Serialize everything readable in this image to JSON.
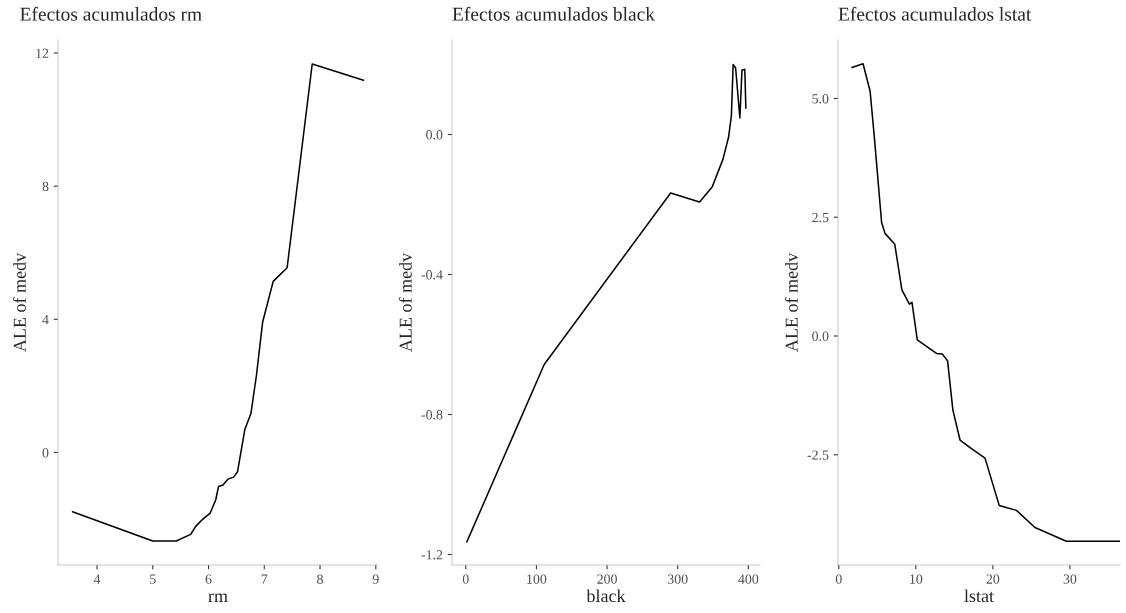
{
  "chart_data": [
    {
      "type": "line",
      "title": "Efectos acumulados rm",
      "xlabel": "rm",
      "ylabel": "ALE of medv",
      "xlim": [
        3.3,
        9.04
      ],
      "ylim": [
        -3.38,
        12.39
      ],
      "xticks": [
        4,
        5,
        6,
        7,
        8,
        9
      ],
      "yticks": [
        0,
        4,
        8,
        12
      ],
      "grid": false,
      "legend": false,
      "series": [
        {
          "color": "#000000",
          "x": [
            3.56,
            5.0,
            5.42,
            5.68,
            5.77,
            5.9,
            6.03,
            6.13,
            6.18,
            6.26,
            6.35,
            6.45,
            6.52,
            6.65,
            6.76,
            6.86,
            6.97,
            7.16,
            7.41,
            7.86,
            8.78
          ],
          "values": [
            -1.78,
            -2.66,
            -2.66,
            -2.46,
            -2.22,
            -2.0,
            -1.82,
            -1.42,
            -1.02,
            -0.98,
            -0.8,
            -0.74,
            -0.58,
            0.68,
            1.17,
            2.32,
            3.91,
            5.14,
            5.55,
            11.67,
            11.18
          ]
        }
      ]
    },
    {
      "type": "line",
      "title": "Efectos acumulados black",
      "xlabel": "black",
      "ylabel": "ALE of medv",
      "xlim": [
        -19.5,
        416.5
      ],
      "ylim": [
        -1.23,
        0.27
      ],
      "xticks": [
        0,
        100,
        200,
        300,
        400
      ],
      "yticks": [
        {
          "value": -1.2,
          "label": "-1.2"
        },
        {
          "value": -0.8,
          "label": "-0.8"
        },
        {
          "value": -0.4,
          "label": "-0.4"
        },
        {
          "value": 0,
          "label": "0.0"
        }
      ],
      "grid": false,
      "legend": false,
      "series": [
        {
          "color": "#000000",
          "x": [
            1.5,
            111,
            290,
            331,
            349,
            364,
            372,
            376,
            378.5,
            382,
            388,
            391,
            395,
            396.5
          ],
          "values": [
            -1.164,
            -0.657,
            -0.167,
            -0.193,
            -0.149,
            -0.071,
            -0.008,
            0.054,
            0.2,
            0.19,
            0.047,
            0.184,
            0.186,
            0.075
          ]
        }
      ]
    },
    {
      "type": "line",
      "title": "Efectos acumulados lstat",
      "xlabel": "lstat",
      "ylabel": "ALE of medv",
      "xlim": [
        -0.1,
        36.5
      ],
      "ylim": [
        -4.82,
        6.23
      ],
      "xticks": [
        0,
        10,
        20,
        30
      ],
      "yticks": [
        {
          "value": -2.5,
          "label": "-2.5"
        },
        {
          "value": 0,
          "label": "0.0"
        },
        {
          "value": 2.5,
          "label": "2.5"
        },
        {
          "value": 5,
          "label": "5.0"
        }
      ],
      "grid": false,
      "legend": false,
      "series": [
        {
          "color": "#000000",
          "x": [
            1.71,
            3.15,
            4.07,
            4.63,
            5.56,
            6.0,
            7.27,
            8.19,
            9.17,
            9.5,
            10.19,
            12.73,
            13.43,
            14.12,
            14.81,
            15.74,
            17.13,
            18.98,
            20.83,
            23.06,
            25.46,
            29.54,
            36.5
          ],
          "values": [
            5.65,
            5.73,
            5.15,
            4.16,
            2.39,
            2.16,
            1.93,
            0.97,
            0.67,
            0.71,
            -0.08,
            -0.37,
            -0.38,
            -0.52,
            -1.56,
            -2.19,
            -2.36,
            -2.57,
            -3.57,
            -3.67,
            -4.03,
            -4.32,
            -4.32
          ]
        }
      ]
    }
  ]
}
